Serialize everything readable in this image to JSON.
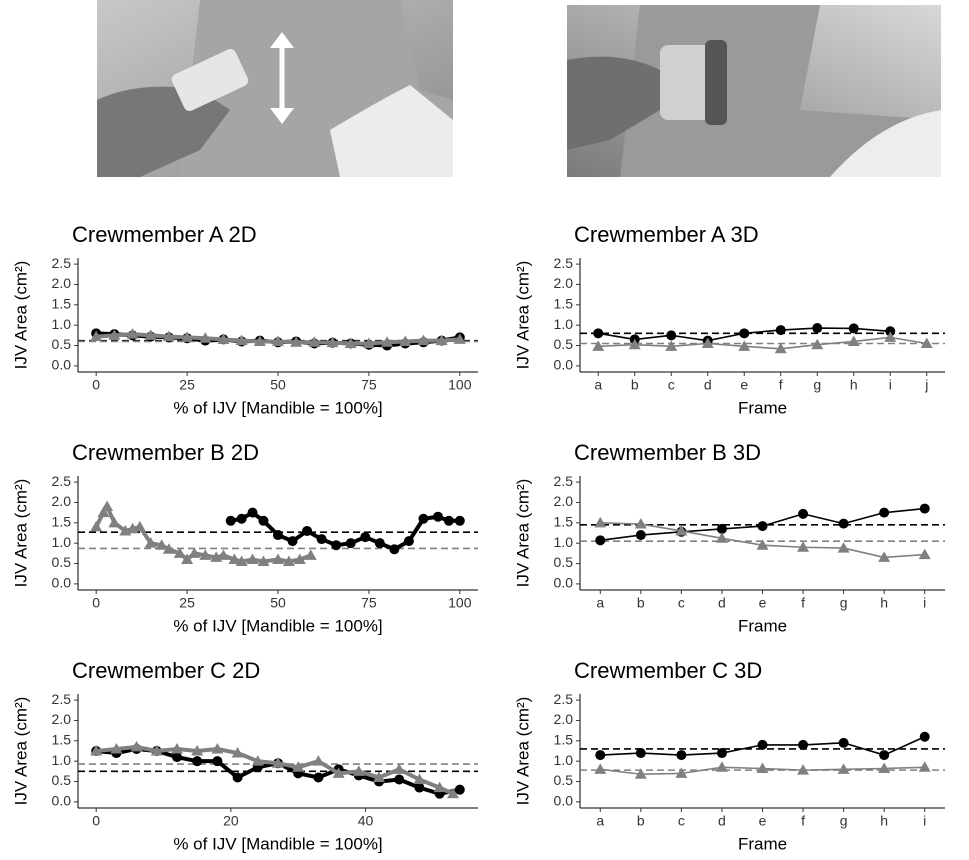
{
  "chart_data": [
    {
      "type": "line",
      "title": "Crewmember A 2D",
      "xlabel": "% of IJV [Mandible = 100%]",
      "ylabel": "IJV Area (cm²)",
      "xlim": [
        -5,
        105
      ],
      "xticks": [
        0,
        25,
        50,
        75,
        100
      ],
      "ylim": [
        -0.15,
        2.65
      ],
      "yticks": [
        {
          "value": 0,
          "label": "0.0"
        },
        {
          "value": 0.5,
          "label": "0.5"
        },
        {
          "value": 1,
          "label": "1.0"
        },
        {
          "value": 1.5,
          "label": "1.5"
        },
        {
          "value": 2,
          "label": "2.0"
        },
        {
          "value": 2.5,
          "label": "2.5"
        }
      ],
      "hlines": [
        {
          "value": 0.62,
          "color": "#000000"
        },
        {
          "value": 0.6,
          "color": "#808080"
        }
      ],
      "series": [
        {
          "color": "#000000",
          "marker": "circle",
          "x": [
            0,
            5,
            10,
            15,
            20,
            25,
            30,
            35,
            40,
            45,
            50,
            55,
            60,
            65,
            70,
            75,
            80,
            85,
            90,
            95,
            100
          ],
          "values": [
            0.8,
            0.78,
            0.75,
            0.72,
            0.7,
            0.68,
            0.62,
            0.65,
            0.6,
            0.62,
            0.58,
            0.6,
            0.55,
            0.57,
            0.55,
            0.52,
            0.5,
            0.55,
            0.58,
            0.62,
            0.7
          ]
        },
        {
          "color": "#808080",
          "marker": "triangle",
          "x": [
            0,
            5,
            10,
            15,
            20,
            25,
            30,
            35,
            40,
            45,
            50,
            55,
            60,
            65,
            70,
            75,
            80,
            85,
            90,
            95,
            100
          ],
          "values": [
            0.72,
            0.75,
            0.78,
            0.75,
            0.72,
            0.7,
            0.68,
            0.65,
            0.62,
            0.6,
            0.6,
            0.58,
            0.58,
            0.57,
            0.55,
            0.55,
            0.58,
            0.6,
            0.62,
            0.62,
            0.65
          ]
        }
      ]
    },
    {
      "type": "line",
      "title": "Crewmember A 3D",
      "xlabel": "Frame",
      "ylabel": "IJV Area (cm²)",
      "categories": [
        "a",
        "b",
        "c",
        "d",
        "e",
        "f",
        "g",
        "h",
        "i",
        "j"
      ],
      "ylim": [
        -0.15,
        2.65
      ],
      "yticks": [
        {
          "value": 0,
          "label": "0.0"
        },
        {
          "value": 0.5,
          "label": "0.5"
        },
        {
          "value": 1,
          "label": "1.0"
        },
        {
          "value": 1.5,
          "label": "1.5"
        },
        {
          "value": 2,
          "label": "2.0"
        },
        {
          "value": 2.5,
          "label": "2.5"
        }
      ],
      "hlines": [
        {
          "value": 0.8,
          "color": "#000000"
        },
        {
          "value": 0.55,
          "color": "#808080"
        }
      ],
      "series": [
        {
          "color": "#000000",
          "marker": "circle",
          "values": [
            0.8,
            0.65,
            0.75,
            0.62,
            0.8,
            0.88,
            0.93,
            0.92,
            0.85,
            null
          ]
        },
        {
          "color": "#808080",
          "marker": "triangle",
          "values": [
            0.48,
            0.52,
            0.48,
            0.55,
            0.48,
            0.42,
            0.52,
            0.6,
            0.7,
            0.55
          ]
        }
      ]
    },
    {
      "type": "line",
      "title": "Crewmember B 2D",
      "xlabel": "% of IJV [Mandible = 100%]",
      "ylabel": "IJV Area (cm²)",
      "xlim": [
        -5,
        105
      ],
      "xticks": [
        0,
        25,
        50,
        75,
        100
      ],
      "ylim": [
        -0.15,
        2.65
      ],
      "yticks": [
        {
          "value": 0,
          "label": "0.0"
        },
        {
          "value": 0.5,
          "label": "0.5"
        },
        {
          "value": 1,
          "label": "1.0"
        },
        {
          "value": 1.5,
          "label": "1.5"
        },
        {
          "value": 2,
          "label": "2.0"
        },
        {
          "value": 2.5,
          "label": "2.5"
        }
      ],
      "hlines": [
        {
          "value": 1.27,
          "color": "#000000"
        },
        {
          "value": 0.87,
          "color": "#808080"
        }
      ],
      "series": [
        {
          "color": "#000000",
          "marker": "circle",
          "x": [
            37,
            40,
            43,
            46,
            50,
            54,
            58,
            62,
            66,
            70,
            74,
            78,
            82,
            86,
            90,
            94,
            97,
            100
          ],
          "values": [
            1.55,
            1.6,
            1.75,
            1.55,
            1.2,
            1.05,
            1.3,
            1.1,
            0.95,
            1.0,
            1.15,
            1.0,
            0.85,
            1.05,
            1.6,
            1.65,
            1.55,
            1.55
          ]
        },
        {
          "color": "#808080",
          "marker": "triangle",
          "x": [
            0,
            2,
            3,
            5,
            8,
            10,
            12,
            15,
            18,
            20,
            23,
            25,
            27,
            30,
            33,
            35,
            38,
            40,
            43,
            46,
            50,
            53,
            56,
            59
          ],
          "values": [
            1.4,
            1.75,
            1.9,
            1.5,
            1.3,
            1.35,
            1.4,
            1.0,
            0.95,
            0.85,
            0.75,
            0.6,
            0.75,
            0.7,
            0.65,
            0.7,
            0.6,
            0.55,
            0.6,
            0.55,
            0.6,
            0.55,
            0.6,
            0.7
          ]
        }
      ]
    },
    {
      "type": "line",
      "title": "Crewmember B 3D",
      "xlabel": "Frame",
      "ylabel": "IJV Area (cm²)",
      "categories": [
        "a",
        "b",
        "c",
        "d",
        "e",
        "f",
        "g",
        "h",
        "i"
      ],
      "ylim": [
        -0.15,
        2.65
      ],
      "yticks": [
        {
          "value": 0,
          "label": "0.0"
        },
        {
          "value": 0.5,
          "label": "0.5"
        },
        {
          "value": 1,
          "label": "1.0"
        },
        {
          "value": 1.5,
          "label": "1.5"
        },
        {
          "value": 2,
          "label": "2.0"
        },
        {
          "value": 2.5,
          "label": "2.5"
        }
      ],
      "hlines": [
        {
          "value": 1.45,
          "color": "#000000"
        },
        {
          "value": 1.05,
          "color": "#808080"
        }
      ],
      "series": [
        {
          "color": "#000000",
          "marker": "circle",
          "values": [
            1.07,
            1.2,
            1.28,
            1.35,
            1.42,
            1.72,
            1.48,
            1.75,
            1.85
          ]
        },
        {
          "color": "#808080",
          "marker": "triangle",
          "values": [
            1.5,
            1.47,
            1.3,
            1.12,
            0.95,
            0.9,
            0.88,
            0.65,
            0.72
          ]
        }
      ]
    },
    {
      "type": "line",
      "title": "Crewmember C 2D",
      "xlabel": "% of IJV [Mandible = 100%]",
      "ylabel": "IJV Area (cm²)",
      "xlim": [
        -2.7,
        56.7
      ],
      "xticks": [
        0,
        20,
        40
      ],
      "ylim": [
        -0.15,
        2.65
      ],
      "yticks": [
        {
          "value": 0,
          "label": "0.0"
        },
        {
          "value": 0.5,
          "label": "0.5"
        },
        {
          "value": 1,
          "label": "1.0"
        },
        {
          "value": 1.5,
          "label": "1.5"
        },
        {
          "value": 2,
          "label": "2.0"
        },
        {
          "value": 2.5,
          "label": "2.5"
        }
      ],
      "hlines": [
        {
          "value": 0.75,
          "color": "#000000"
        },
        {
          "value": 0.93,
          "color": "#808080"
        }
      ],
      "series": [
        {
          "color": "#000000",
          "marker": "circle",
          "x": [
            0,
            3,
            6,
            9,
            12,
            15,
            18,
            21,
            24,
            27,
            30,
            33,
            36,
            39,
            42,
            45,
            48,
            51,
            54
          ],
          "values": [
            1.25,
            1.2,
            1.3,
            1.25,
            1.1,
            1.0,
            1.0,
            0.6,
            0.85,
            0.95,
            0.7,
            0.6,
            0.8,
            0.65,
            0.5,
            0.55,
            0.35,
            0.2,
            0.3
          ]
        },
        {
          "color": "#808080",
          "marker": "triangle",
          "x": [
            0,
            3,
            6,
            9,
            12,
            15,
            18,
            21,
            24,
            27,
            30,
            33,
            36,
            39,
            42,
            45,
            48,
            51,
            53
          ],
          "values": [
            1.25,
            1.3,
            1.35,
            1.25,
            1.3,
            1.25,
            1.3,
            1.2,
            1.0,
            0.95,
            0.85,
            1.0,
            0.7,
            0.75,
            0.6,
            0.8,
            0.55,
            0.35,
            0.2
          ]
        }
      ]
    },
    {
      "type": "line",
      "title": "Crewmember C 3D",
      "xlabel": "Frame",
      "ylabel": "IJV Area (cm²)",
      "categories": [
        "a",
        "b",
        "c",
        "d",
        "e",
        "f",
        "g",
        "h",
        "i"
      ],
      "ylim": [
        -0.15,
        2.65
      ],
      "yticks": [
        {
          "value": 0,
          "label": "0.0"
        },
        {
          "value": 0.5,
          "label": "0.5"
        },
        {
          "value": 1,
          "label": "1.0"
        },
        {
          "value": 1.5,
          "label": "1.5"
        },
        {
          "value": 2,
          "label": "2.0"
        },
        {
          "value": 2.5,
          "label": "2.5"
        }
      ],
      "hlines": [
        {
          "value": 1.3,
          "color": "#000000"
        },
        {
          "value": 0.78,
          "color": "#808080"
        }
      ],
      "series": [
        {
          "color": "#000000",
          "marker": "circle",
          "values": [
            1.15,
            1.2,
            1.15,
            1.2,
            1.4,
            1.4,
            1.45,
            1.15,
            1.6
          ]
        },
        {
          "color": "#808080",
          "marker": "triangle",
          "values": [
            0.8,
            0.68,
            0.7,
            0.85,
            0.82,
            0.78,
            0.8,
            0.82,
            0.85
          ]
        }
      ]
    }
  ]
}
